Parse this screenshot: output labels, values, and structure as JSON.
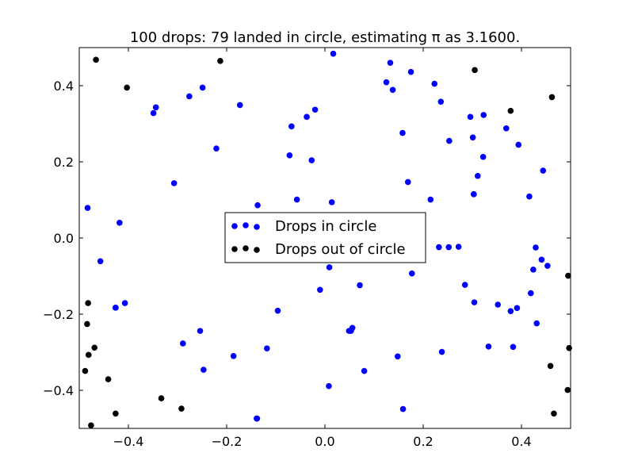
{
  "chart_data": {
    "type": "scatter",
    "title": "100 drops: 79 landed in circle, estimating π as 3.1600.",
    "xlabel": "",
    "ylabel": "",
    "xlim": [
      -0.5,
      0.5
    ],
    "ylim": [
      -0.5,
      0.5
    ],
    "grid": false,
    "legend_position": "center",
    "x_ticks": [
      -0.4,
      -0.2,
      0.0,
      0.2,
      0.4
    ],
    "x_tick_labels": [
      "−0.4",
      "−0.2",
      "0.0",
      "0.2",
      "0.4"
    ],
    "y_ticks": [
      -0.4,
      -0.2,
      0.0,
      0.2,
      0.4
    ],
    "y_tick_labels": [
      "−0.4",
      "−0.2",
      "0.0",
      "0.2",
      "0.4"
    ],
    "series": [
      {
        "name": "Drops in circle",
        "color": "#0000ff",
        "points": [
          [
            -0.483,
            0.079
          ],
          [
            -0.457,
            -0.061
          ],
          [
            -0.426,
            -0.183
          ],
          [
            -0.418,
            0.04
          ],
          [
            -0.407,
            -0.171
          ],
          [
            -0.349,
            0.328
          ],
          [
            -0.344,
            0.343
          ],
          [
            -0.307,
            0.144
          ],
          [
            -0.289,
            -0.277
          ],
          [
            -0.276,
            0.372
          ],
          [
            -0.254,
            -0.244
          ],
          [
            -0.249,
            0.395
          ],
          [
            -0.247,
            -0.346
          ],
          [
            -0.221,
            0.235
          ],
          [
            -0.186,
            -0.31
          ],
          [
            -0.173,
            0.349
          ],
          [
            -0.137,
            0.086
          ],
          [
            -0.138,
            -0.474
          ],
          [
            -0.118,
            -0.29
          ],
          [
            -0.096,
            -0.191
          ],
          [
            -0.072,
            0.217
          ],
          [
            -0.068,
            0.293
          ],
          [
            -0.057,
            0.101
          ],
          [
            -0.037,
            0.318
          ],
          [
            -0.027,
            0.204
          ],
          [
            -0.02,
            0.337
          ],
          [
            -0.01,
            -0.136
          ],
          [
            0.009,
            -0.077
          ],
          [
            0.008,
            -0.389
          ],
          [
            0.014,
            0.094
          ],
          [
            0.017,
            0.484
          ],
          [
            0.053,
            -0.244
          ],
          [
            0.056,
            -0.236
          ],
          [
            0.071,
            -0.124
          ],
          [
            0.08,
            -0.349
          ],
          [
            0.125,
            0.409
          ],
          [
            0.133,
            0.46
          ],
          [
            0.138,
            0.389
          ],
          [
            0.148,
            -0.311
          ],
          [
            0.158,
            0.276
          ],
          [
            0.159,
            -0.449
          ],
          [
            0.169,
            0.147
          ],
          [
            0.175,
            0.436
          ],
          [
            0.177,
            -0.093
          ],
          [
            0.215,
            0.101
          ],
          [
            0.223,
            0.405
          ],
          [
            0.232,
            -0.024
          ],
          [
            0.236,
            0.358
          ],
          [
            0.238,
            -0.299
          ],
          [
            0.253,
            0.255
          ],
          [
            0.252,
            -0.024
          ],
          [
            0.272,
            -0.023
          ],
          [
            0.285,
            -0.123
          ],
          [
            0.296,
            0.318
          ],
          [
            0.301,
            0.264
          ],
          [
            0.303,
            0.115
          ],
          [
            0.304,
            -0.169
          ],
          [
            0.311,
            0.163
          ],
          [
            0.322,
            0.213
          ],
          [
            0.323,
            0.323
          ],
          [
            0.333,
            -0.285
          ],
          [
            0.352,
            -0.175
          ],
          [
            0.369,
            0.288
          ],
          [
            0.378,
            -0.192
          ],
          [
            0.383,
            -0.286
          ],
          [
            0.391,
            -0.184
          ],
          [
            0.394,
            0.245
          ],
          [
            0.416,
            0.109
          ],
          [
            0.419,
            -0.145
          ],
          [
            0.424,
            -0.083
          ],
          [
            0.429,
            -0.025
          ],
          [
            0.431,
            -0.224
          ],
          [
            0.441,
            -0.057
          ],
          [
            0.444,
            0.177
          ],
          [
            0.453,
            -0.073
          ],
          [
            -0.139,
            -0.474
          ],
          [
            0.049,
            -0.244
          ],
          [
            -0.426,
            -0.183
          ],
          [
            0.303,
            0.115
          ]
        ]
      },
      {
        "name": "Drops out of circle",
        "color": "#000000",
        "points": [
          [
            -0.466,
            0.468
          ],
          [
            -0.403,
            0.395
          ],
          [
            -0.213,
            0.465
          ],
          [
            0.305,
            0.441
          ],
          [
            0.378,
            0.334
          ],
          [
            0.462,
            0.37
          ],
          [
            -0.482,
            -0.171
          ],
          [
            -0.484,
            -0.226
          ],
          [
            -0.481,
            -0.307
          ],
          [
            -0.469,
            -0.288
          ],
          [
            -0.488,
            -0.349
          ],
          [
            -0.441,
            -0.371
          ],
          [
            -0.476,
            -0.492
          ],
          [
            -0.426,
            -0.461
          ],
          [
            -0.333,
            -0.421
          ],
          [
            -0.292,
            -0.448
          ],
          [
            0.495,
            -0.099
          ],
          [
            0.497,
            -0.289
          ],
          [
            0.459,
            -0.336
          ],
          [
            0.494,
            -0.399
          ],
          [
            0.466,
            -0.461
          ]
        ]
      }
    ]
  },
  "legend": {
    "items": [
      "Drops in circle",
      "Drops out of circle"
    ]
  }
}
